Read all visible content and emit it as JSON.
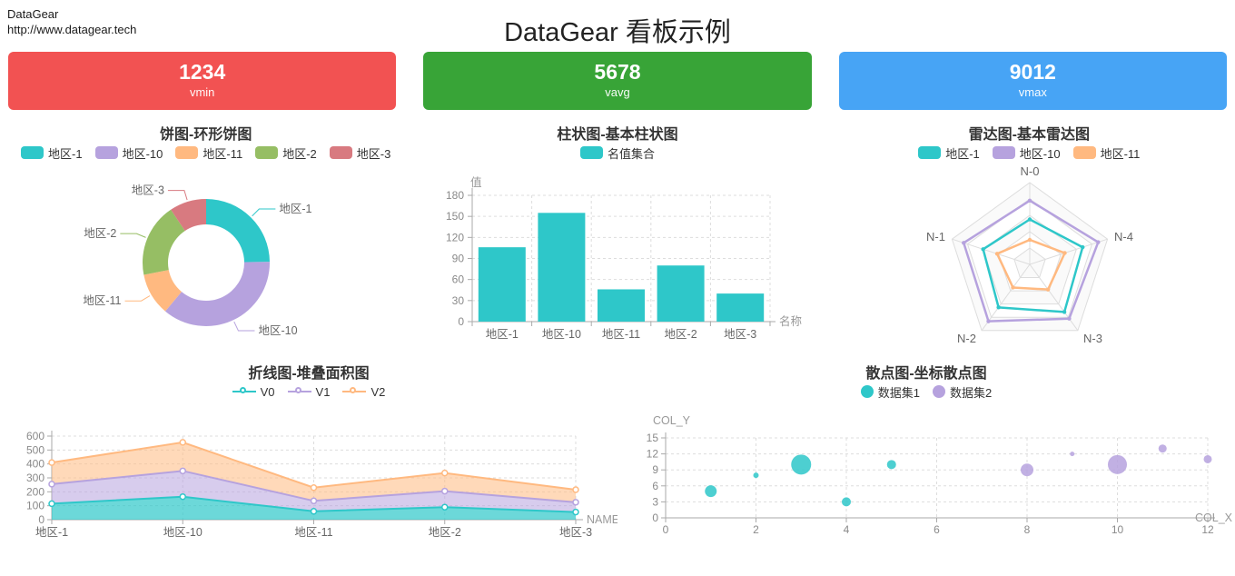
{
  "header": {
    "logo": "DataGear",
    "url": "http://www.datagear.tech",
    "title": "DataGear 看板示例"
  },
  "cards": [
    {
      "value": "1234",
      "label": "vmin",
      "color": "#F25252"
    },
    {
      "value": "5678",
      "label": "vavg",
      "color": "#38A437"
    },
    {
      "value": "9012",
      "label": "vmax",
      "color": "#47A4F5"
    }
  ],
  "palette": {
    "teal": "#2EC7C9",
    "purple": "#B6A2DE",
    "orange": "#FFB980",
    "olive": "#96BE64",
    "rose": "#D87A80"
  },
  "chart_data": [
    {
      "type": "pie",
      "title": "饼图-环形饼图",
      "legend_icon": "roundRect",
      "legend": [
        {
          "label": "地区-1",
          "color": "#2EC7C9"
        },
        {
          "label": "地区-10",
          "color": "#B6A2DE"
        },
        {
          "label": "地区-11",
          "color": "#FFB980"
        },
        {
          "label": "地区-2",
          "color": "#96BE64"
        },
        {
          "label": "地区-3",
          "color": "#D87A80"
        }
      ],
      "series": [
        {
          "name": "地区-1",
          "value": 106,
          "color": "#2EC7C9"
        },
        {
          "name": "地区-10",
          "value": 155,
          "color": "#B6A2DE"
        },
        {
          "name": "地区-11",
          "value": 46,
          "color": "#FFB980"
        },
        {
          "name": "地区-2",
          "value": 80,
          "color": "#96BE64"
        },
        {
          "name": "地区-3",
          "value": 40,
          "color": "#D87A80"
        }
      ],
      "donut": true
    },
    {
      "type": "bar",
      "title": "柱状图-基本柱状图",
      "legend_icon": "roundRect",
      "legend": [
        {
          "label": "名值集合",
          "color": "#2EC7C9"
        }
      ],
      "categories": [
        "地区-1",
        "地区-10",
        "地区-11",
        "地区-2",
        "地区-3"
      ],
      "values": [
        106,
        155,
        46,
        80,
        40
      ],
      "xlabel": "名称",
      "ylabel": "值",
      "ylim": [
        0,
        180
      ],
      "ytick_step": 30,
      "bar_color": "#2EC7C9"
    },
    {
      "type": "radar",
      "title": "雷达图-基本雷达图",
      "legend_icon": "roundRect",
      "legend": [
        {
          "label": "地区-1",
          "color": "#2EC7C9"
        },
        {
          "label": "地区-10",
          "color": "#B6A2DE"
        },
        {
          "label": "地区-11",
          "color": "#FFB980"
        }
      ],
      "axes": [
        "N-0",
        "N-4",
        "N-3",
        "N-2",
        "N-1"
      ],
      "max": 100,
      "series": [
        {
          "name": "地区-1",
          "color": "#2EC7C9",
          "values": [
            55,
            68,
            72,
            65,
            60
          ]
        },
        {
          "name": "地区-10",
          "color": "#B6A2DE",
          "values": [
            78,
            88,
            82,
            86,
            85
          ]
        },
        {
          "name": "地区-11",
          "color": "#FFB980",
          "values": [
            30,
            45,
            38,
            35,
            42
          ]
        }
      ]
    },
    {
      "type": "area",
      "title": "折线图-堆叠面积图",
      "legend_icon": "line",
      "legend": [
        {
          "label": "V0",
          "color": "#2EC7C9"
        },
        {
          "label": "V1",
          "color": "#B6A2DE"
        },
        {
          "label": "V2",
          "color": "#FFB980"
        }
      ],
      "categories": [
        "地区-1",
        "地区-10",
        "地区-11",
        "地区-2",
        "地区-3"
      ],
      "stacked": true,
      "series": [
        {
          "name": "V0",
          "color": "#2EC7C9",
          "values": [
            115,
            165,
            60,
            90,
            55
          ]
        },
        {
          "name": "V1",
          "color": "#B6A2DE",
          "values": [
            140,
            185,
            75,
            115,
            70
          ]
        },
        {
          "name": "V2",
          "color": "#FFB980",
          "values": [
            155,
            205,
            95,
            130,
            90
          ]
        }
      ],
      "xlabel": "NAME",
      "ylim": [
        0,
        600
      ],
      "ytick_step": 100
    },
    {
      "type": "scatter",
      "title": "散点图-坐标散点图",
      "legend_icon": "circle",
      "legend": [
        {
          "label": "数据集1",
          "color": "#2EC7C9"
        },
        {
          "label": "数据集2",
          "color": "#B6A2DE"
        }
      ],
      "xlabel": "COL_X",
      "ylabel": "COL_Y",
      "xlim": [
        0,
        12
      ],
      "xtick_step": 2,
      "ylim": [
        0,
        15
      ],
      "ytick_step": 3,
      "series": [
        {
          "name": "数据集1",
          "color": "#2EC7C9",
          "points": [
            [
              1,
              5,
              6.5
            ],
            [
              2,
              8,
              3
            ],
            [
              3,
              10,
              11
            ],
            [
              4,
              3,
              5
            ],
            [
              5,
              10,
              5
            ]
          ]
        },
        {
          "name": "数据集2",
          "color": "#B6A2DE",
          "points": [
            [
              8,
              9,
              7
            ],
            [
              9,
              12,
              2.5
            ],
            [
              10,
              10,
              10.5
            ],
            [
              11,
              13,
              4.5
            ],
            [
              12,
              11,
              4.5
            ]
          ]
        }
      ]
    }
  ]
}
